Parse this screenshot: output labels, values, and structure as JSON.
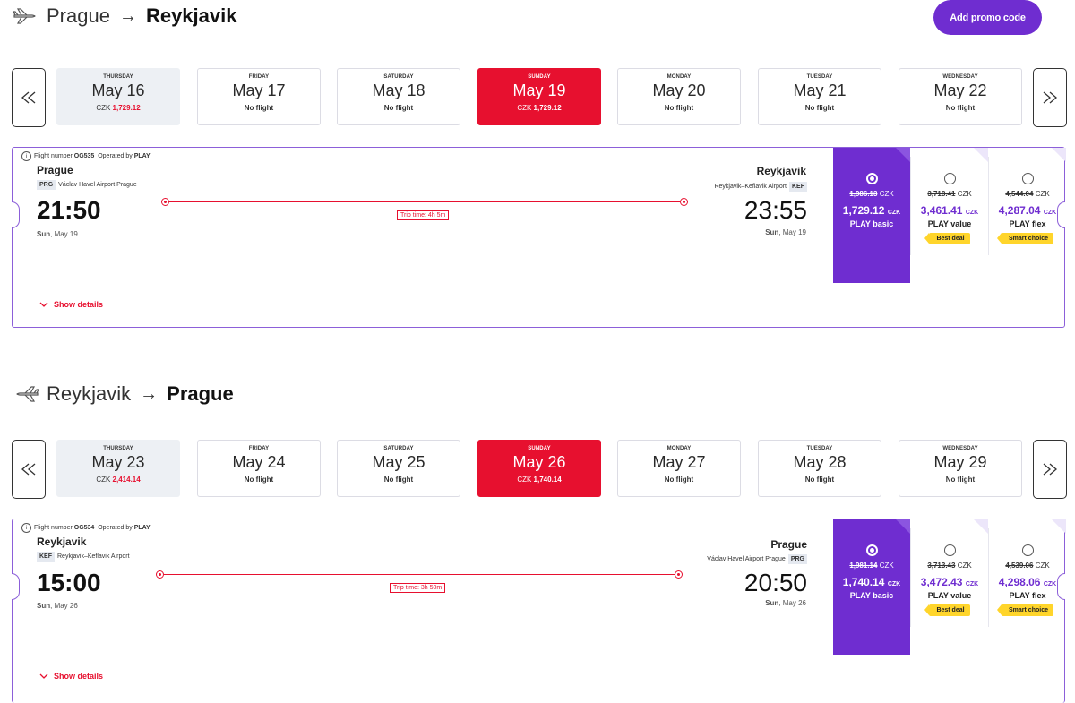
{
  "promo_label": "Add promo code",
  "currency": "CZK",
  "colors": {
    "accent": "#6f2dd0",
    "selected_date": "#e7102f",
    "tag": "#ffd52b"
  },
  "outbound": {
    "from": "Prague",
    "to": "Reykjavik",
    "dates": [
      {
        "dow": "THURSDAY",
        "date": "May 16",
        "price": "1,729.12",
        "currency": "CZK"
      },
      {
        "dow": "FRIDAY",
        "date": "May 17",
        "status": "No flight"
      },
      {
        "dow": "SATURDAY",
        "date": "May 18",
        "status": "No flight"
      },
      {
        "dow": "SUNDAY",
        "date": "May 19",
        "price": "1,729.12",
        "currency": "CZK",
        "selected": true
      },
      {
        "dow": "MONDAY",
        "date": "May 20",
        "status": "No flight"
      },
      {
        "dow": "TUESDAY",
        "date": "May 21",
        "status": "No flight"
      },
      {
        "dow": "WEDNESDAY",
        "date": "May 22",
        "status": "No flight"
      }
    ],
    "flight": {
      "flight_number_label": "Flight number",
      "flight_number": "OG535",
      "operated_label": "Operated by",
      "operator": "PLAY",
      "dep_city": "Prague",
      "dep_code": "PRG",
      "dep_airport": "Václav Havel Airport Prague",
      "dep_time": "21:50",
      "dep_day": "Sun",
      "dep_date": "May 19",
      "arr_city": "Reykjavik",
      "arr_code": "KEF",
      "arr_airport": "Reykjavik–Keflavik Airport",
      "arr_time": "23:55",
      "arr_day": "Sun",
      "arr_date": "May 19",
      "trip_time": "Trip time: 4h 5m",
      "show_details": "Show details"
    },
    "fares": [
      {
        "name": "PLAY basic",
        "old": "1,986.13",
        "price": "1,729.12",
        "selected": true
      },
      {
        "name": "PLAY value",
        "old": "3,718.41",
        "price": "3,461.41",
        "tag": "Best deal"
      },
      {
        "name": "PLAY flex",
        "old": "4,544.04",
        "price": "4,287.04",
        "tag": "Smart choice"
      }
    ]
  },
  "inbound": {
    "from": "Reykjavik",
    "to": "Prague",
    "dates": [
      {
        "dow": "THURSDAY",
        "date": "May 23",
        "price": "2,414.14",
        "currency": "CZK"
      },
      {
        "dow": "FRIDAY",
        "date": "May 24",
        "status": "No flight"
      },
      {
        "dow": "SATURDAY",
        "date": "May 25",
        "status": "No flight"
      },
      {
        "dow": "SUNDAY",
        "date": "May 26",
        "price": "1,740.14",
        "currency": "CZK",
        "selected": true
      },
      {
        "dow": "MONDAY",
        "date": "May 27",
        "status": "No flight"
      },
      {
        "dow": "TUESDAY",
        "date": "May 28",
        "status": "No flight"
      },
      {
        "dow": "WEDNESDAY",
        "date": "May 29",
        "status": "No flight"
      }
    ],
    "flight": {
      "flight_number_label": "Flight number",
      "flight_number": "OG534",
      "operated_label": "Operated by",
      "operator": "PLAY",
      "dep_city": "Reykjavik",
      "dep_code": "KEF",
      "dep_airport": "Reykjavik–Keflavik Airport",
      "dep_time": "15:00",
      "dep_day": "Sun",
      "dep_date": "May 26",
      "arr_city": "Prague",
      "arr_code": "PRG",
      "arr_airport": "Václav Havel Airport Prague",
      "arr_time": "20:50",
      "arr_day": "Sun",
      "arr_date": "May 26",
      "trip_time": "Trip time: 3h 50m",
      "show_details": "Show details"
    },
    "fares": [
      {
        "name": "PLAY basic",
        "old": "1,981.14",
        "price": "1,740.14",
        "selected": true
      },
      {
        "name": "PLAY value",
        "old": "3,713.43",
        "price": "3,472.43",
        "tag": "Best deal"
      },
      {
        "name": "PLAY flex",
        "old": "4,539.06",
        "price": "4,298.06",
        "tag": "Smart choice"
      }
    ]
  }
}
